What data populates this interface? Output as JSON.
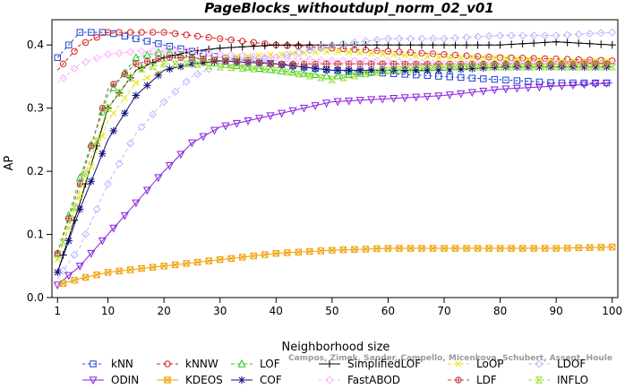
{
  "chart_data": {
    "type": "line",
    "title": "PageBlocks_withoutdupl_norm_02_v01",
    "xlabel": "Neighborhood size",
    "ylabel": "AP",
    "xlim": [
      0,
      101
    ],
    "ylim": [
      0,
      0.44
    ],
    "xticks": [
      1,
      10,
      20,
      30,
      40,
      50,
      60,
      70,
      80,
      90,
      100
    ],
    "yticks": [
      0.0,
      0.1,
      0.2,
      0.3,
      0.4
    ],
    "ytick_labels": [
      "0.0",
      "0.1",
      "0.2",
      "0.3",
      "0.4"
    ],
    "grid": false,
    "legend_position": "bottom",
    "x": [
      1,
      5,
      10,
      15,
      20,
      25,
      30,
      40,
      50,
      60,
      70,
      80,
      90,
      100
    ],
    "series": [
      {
        "name": "kNN",
        "color": "#1f3fd6",
        "marker": "square",
        "dash": "3,3",
        "values": [
          0.38,
          0.42,
          0.42,
          0.41,
          0.4,
          0.39,
          0.38,
          0.37,
          0.36,
          0.355,
          0.35,
          0.345,
          0.34,
          0.34
        ]
      },
      {
        "name": "kNNW",
        "color": "#d62020",
        "marker": "circle",
        "dash": "4,3",
        "values": [
          0.36,
          0.4,
          0.42,
          0.42,
          0.42,
          0.415,
          0.41,
          0.4,
          0.395,
          0.39,
          0.385,
          0.38,
          0.378,
          0.375
        ]
      },
      {
        "name": "LOF",
        "color": "#22cc22",
        "marker": "triangle",
        "dash": "4,3",
        "values": [
          0.07,
          0.19,
          0.32,
          0.38,
          0.39,
          0.38,
          0.37,
          0.36,
          0.35,
          0.36,
          0.365,
          0.37,
          0.37,
          0.37
        ]
      },
      {
        "name": "SimplifiedLOF",
        "color": "#000000",
        "marker": "plus",
        "dash": "",
        "values": [
          0.04,
          0.15,
          0.3,
          0.36,
          0.38,
          0.39,
          0.395,
          0.4,
          0.4,
          0.4,
          0.4,
          0.4,
          0.405,
          0.4
        ]
      },
      {
        "name": "LoOP",
        "color": "#e6e600",
        "marker": "x",
        "dash": "4,3",
        "values": [
          0.06,
          0.16,
          0.28,
          0.34,
          0.36,
          0.37,
          0.38,
          0.385,
          0.39,
          0.385,
          0.38,
          0.38,
          0.375,
          0.375
        ]
      },
      {
        "name": "LDOF",
        "color": "#b8b8ff",
        "marker": "diamond",
        "dash": "4,3",
        "values": [
          0.03,
          0.08,
          0.18,
          0.26,
          0.31,
          0.35,
          0.37,
          0.38,
          0.4,
          0.41,
          0.41,
          0.415,
          0.415,
          0.42
        ]
      },
      {
        "name": "ODIN",
        "color": "#8a1fe0",
        "marker": "triangle-down",
        "dash": "",
        "values": [
          0.02,
          0.05,
          0.1,
          0.15,
          0.2,
          0.245,
          0.27,
          0.29,
          0.31,
          0.315,
          0.32,
          0.33,
          0.335,
          0.34
        ]
      },
      {
        "name": "KDEOS",
        "color": "#f0a000",
        "marker": "square-x",
        "dash": "",
        "values": [
          0.02,
          0.03,
          0.04,
          0.045,
          0.05,
          0.055,
          0.06,
          0.07,
          0.075,
          0.078,
          0.078,
          0.078,
          0.078,
          0.08
        ]
      },
      {
        "name": "COF",
        "color": "#101080",
        "marker": "star",
        "dash": "",
        "values": [
          0.04,
          0.14,
          0.25,
          0.32,
          0.36,
          0.37,
          0.375,
          0.37,
          0.36,
          0.36,
          0.36,
          0.365,
          0.365,
          0.365
        ]
      },
      {
        "name": "FastABOD",
        "color": "#ffb0ff",
        "marker": "diamond",
        "dash": "4,3",
        "values": [
          0.34,
          0.37,
          0.385,
          0.39,
          0.39,
          0.39,
          0.385,
          0.38,
          0.375,
          0.375,
          0.37,
          0.37,
          0.37,
          0.37
        ]
      },
      {
        "name": "LDF",
        "color": "#c04040",
        "marker": "circle-plus",
        "dash": "4,3",
        "values": [
          0.07,
          0.18,
          0.33,
          0.37,
          0.38,
          0.38,
          0.375,
          0.37,
          0.37,
          0.37,
          0.37,
          0.37,
          0.37,
          0.37
        ]
      },
      {
        "name": "INFLO",
        "color": "#99dd33",
        "marker": "hourglass",
        "dash": "4,3",
        "values": [
          0.06,
          0.17,
          0.3,
          0.36,
          0.37,
          0.37,
          0.365,
          0.36,
          0.345,
          0.36,
          0.365,
          0.365,
          0.365,
          0.365
        ]
      }
    ],
    "annotation": "Campos, Zimek, Sander, Campello, Micenkova, Schubert, Assent, Houle"
  }
}
